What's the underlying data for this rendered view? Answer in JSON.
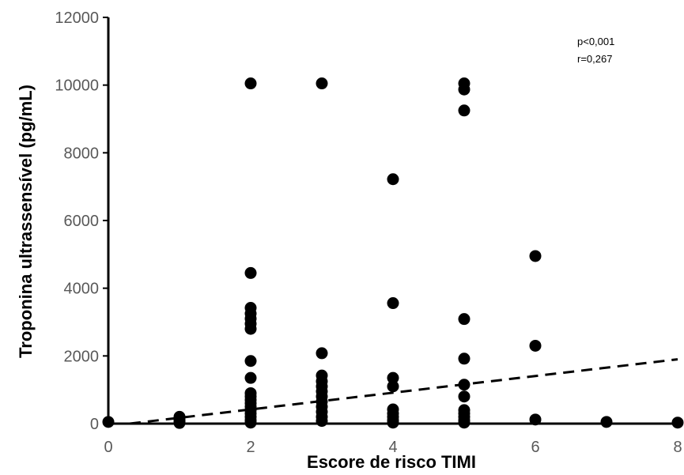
{
  "chart_data": {
    "type": "scatter",
    "xlabel": "Escore de risco TIMI",
    "ylabel": "Troponina ultrassensível (pg/mL)",
    "xlim": [
      0,
      8
    ],
    "ylim": [
      0,
      12000
    ],
    "xticks": [
      0,
      2,
      4,
      6,
      8
    ],
    "yticks": [
      0,
      2000,
      4000,
      6000,
      8000,
      10000,
      12000
    ],
    "xtick_labels": [
      "0",
      "2",
      "4",
      "6",
      "8"
    ],
    "ytick_labels": [
      "0",
      "2000",
      "4000",
      "6000",
      "8000",
      "10000",
      "12000"
    ],
    "grid": false,
    "legend": "none",
    "annotations": [
      "p<0,001",
      "r=0,267"
    ],
    "marker_color": "#000000",
    "trendline": {
      "style": "dashed",
      "start": [
        0.3,
        0
      ],
      "end": [
        8,
        1900
      ]
    },
    "points": [
      [
        0,
        50
      ],
      [
        1,
        200
      ],
      [
        1,
        120
      ],
      [
        1,
        60
      ],
      [
        1,
        20
      ],
      [
        2,
        10050
      ],
      [
        2,
        4450
      ],
      [
        2,
        3420
      ],
      [
        2,
        3250
      ],
      [
        2,
        3100
      ],
      [
        2,
        2950
      ],
      [
        2,
        2800
      ],
      [
        2,
        1850
      ],
      [
        2,
        1350
      ],
      [
        2,
        900
      ],
      [
        2,
        800
      ],
      [
        2,
        700
      ],
      [
        2,
        600
      ],
      [
        2,
        500
      ],
      [
        2,
        400
      ],
      [
        2,
        300
      ],
      [
        2,
        200
      ],
      [
        2,
        100
      ],
      [
        2,
        30
      ],
      [
        3,
        10050
      ],
      [
        3,
        2080
      ],
      [
        3,
        1420
      ],
      [
        3,
        1250
      ],
      [
        3,
        1100
      ],
      [
        3,
        950
      ],
      [
        3,
        800
      ],
      [
        3,
        650
      ],
      [
        3,
        500
      ],
      [
        3,
        350
      ],
      [
        3,
        200
      ],
      [
        3,
        80
      ],
      [
        4,
        7220
      ],
      [
        4,
        3560
      ],
      [
        4,
        1350
      ],
      [
        4,
        1100
      ],
      [
        4,
        420
      ],
      [
        4,
        300
      ],
      [
        4,
        200
      ],
      [
        4,
        100
      ],
      [
        4,
        30
      ],
      [
        5,
        10050
      ],
      [
        5,
        9870
      ],
      [
        5,
        9250
      ],
      [
        5,
        3090
      ],
      [
        5,
        1920
      ],
      [
        5,
        1150
      ],
      [
        5,
        800
      ],
      [
        5,
        400
      ],
      [
        5,
        300
      ],
      [
        5,
        200
      ],
      [
        5,
        100
      ],
      [
        5,
        30
      ],
      [
        6,
        4950
      ],
      [
        6,
        2300
      ],
      [
        6,
        120
      ],
      [
        7,
        50
      ],
      [
        8,
        30
      ]
    ]
  }
}
